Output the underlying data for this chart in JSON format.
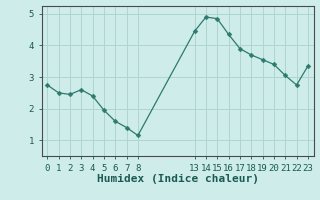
{
  "x": [
    0,
    1,
    2,
    3,
    4,
    5,
    6,
    7,
    8,
    13,
    14,
    15,
    16,
    17,
    18,
    19,
    20,
    21,
    22,
    23
  ],
  "y": [
    2.75,
    2.5,
    2.45,
    2.6,
    2.4,
    1.95,
    1.6,
    1.4,
    1.15,
    4.45,
    4.9,
    4.85,
    4.35,
    3.9,
    3.7,
    3.55,
    3.4,
    3.05,
    2.75,
    3.35
  ],
  "line_color": "#2d7a6e",
  "marker": "D",
  "marker_size": 2.5,
  "bg_color": "#ceecea",
  "grid_color": "#b0d4d0",
  "xlabel": "Humidex (Indice chaleur)",
  "xlim": [
    -0.5,
    23.5
  ],
  "ylim": [
    0.5,
    5.25
  ],
  "yticks": [
    1,
    2,
    3,
    4,
    5
  ],
  "xticks": [
    0,
    1,
    2,
    3,
    4,
    5,
    6,
    7,
    8,
    13,
    14,
    15,
    16,
    17,
    18,
    19,
    20,
    21,
    22,
    23
  ],
  "tick_label_fontsize": 6.5,
  "xlabel_fontsize": 8,
  "axis_color": "#2d7a6e",
  "spine_color": "#4a4a4a"
}
